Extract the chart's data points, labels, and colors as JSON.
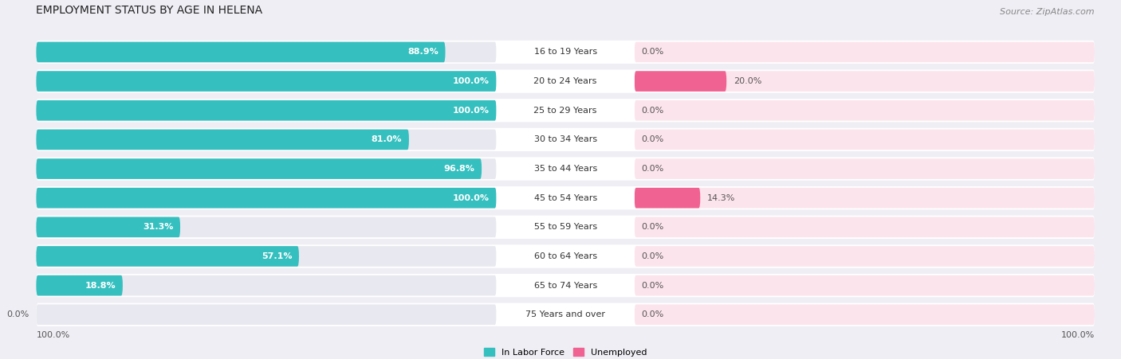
{
  "title": "EMPLOYMENT STATUS BY AGE IN HELENA",
  "source": "Source: ZipAtlas.com",
  "categories": [
    "16 to 19 Years",
    "20 to 24 Years",
    "25 to 29 Years",
    "30 to 34 Years",
    "35 to 44 Years",
    "45 to 54 Years",
    "55 to 59 Years",
    "60 to 64 Years",
    "65 to 74 Years",
    "75 Years and over"
  ],
  "in_labor_force": [
    88.9,
    100.0,
    100.0,
    81.0,
    96.8,
    100.0,
    31.3,
    57.1,
    18.8,
    0.0
  ],
  "unemployed": [
    0.0,
    20.0,
    0.0,
    0.0,
    0.0,
    14.3,
    0.0,
    0.0,
    0.0,
    0.0
  ],
  "labor_color": "#36bfbf",
  "unemployed_color_strong": "#f06292",
  "unemployed_color_light": "#f8bbd0",
  "background_color": "#eeeef4",
  "row_bg_color": "#ffffff",
  "bar_bg_color_left": "#e8e8f0",
  "bar_bg_color_right": "#fce4ec",
  "title_fontsize": 10,
  "source_fontsize": 8,
  "label_fontsize": 8,
  "cat_fontsize": 8,
  "axis_label_left": "100.0%",
  "axis_label_right": "100.0%",
  "max_value": 100.0
}
